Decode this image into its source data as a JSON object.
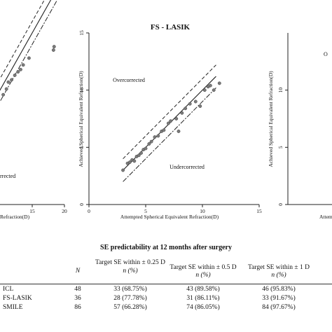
{
  "chart_data": [
    {
      "type": "scatter",
      "title": "",
      "xlabel": "Refraction(D)",
      "ylabel": "",
      "x_ticks": [
        "15",
        "20"
      ],
      "xlim": [
        0,
        20
      ],
      "ylim": [
        0,
        15
      ],
      "annotations": [
        "rrected"
      ],
      "series": [
        {
          "values": [
            [
              10.5,
              9.6
            ],
            [
              11.0,
              10.1
            ],
            [
              11.3,
              10.7
            ],
            [
              11.8,
              10.9
            ],
            [
              12.3,
              11.3
            ],
            [
              12.8,
              11.6
            ],
            [
              13.2,
              11.8
            ],
            [
              13.6,
              12.2
            ],
            [
              14.5,
              12.8
            ],
            [
              18.3,
              13.5
            ],
            [
              18.4,
              13.8
            ]
          ]
        }
      ]
    },
    {
      "type": "scatter",
      "title": "FS - LASIK",
      "xlabel": "Attempted Spherical Equivalent Refraction(D)",
      "ylabel": "Achieved Spherical Equivalent Refraction(D)",
      "x_ticks": [
        "0",
        "5",
        "10",
        "15"
      ],
      "y_ticks": [
        "0",
        "5",
        "10",
        "15"
      ],
      "xlim": [
        0,
        15
      ],
      "ylim": [
        0,
        15
      ],
      "annotations": [
        "Overcorrected",
        "Undercorrected"
      ],
      "series": [
        {
          "values": [
            [
              3.0,
              3.0
            ],
            [
              3.4,
              3.6
            ],
            [
              3.6,
              3.7
            ],
            [
              3.8,
              3.9
            ],
            [
              4.0,
              3.8
            ],
            [
              4.2,
              4.2
            ],
            [
              4.4,
              4.3
            ],
            [
              4.6,
              4.5
            ],
            [
              4.8,
              4.8
            ],
            [
              5.0,
              4.9
            ],
            [
              5.3,
              5.3
            ],
            [
              5.5,
              5.5
            ],
            [
              5.8,
              5.9
            ],
            [
              6.1,
              6.0
            ],
            [
              6.4,
              6.4
            ],
            [
              6.6,
              6.5
            ],
            [
              7.0,
              7.1
            ],
            [
              7.2,
              7.3
            ],
            [
              7.7,
              7.5
            ],
            [
              7.9,
              6.4
            ],
            [
              8.2,
              8.0
            ],
            [
              8.5,
              8.4
            ],
            [
              8.9,
              8.8
            ],
            [
              9.4,
              9.0
            ],
            [
              9.8,
              8.6
            ],
            [
              10.2,
              10.0
            ],
            [
              10.5,
              10.3
            ],
            [
              10.7,
              10.4
            ],
            [
              11.0,
              10.0
            ],
            [
              11.5,
              10.6
            ]
          ]
        }
      ]
    },
    {
      "type": "scatter",
      "title": "",
      "xlabel": "Attem",
      "ylabel": "Achieved Spherical Equivalent Refraction(D)",
      "y_ticks": [
        "0",
        "5",
        "10"
      ],
      "xlim": [
        0,
        15
      ],
      "ylim": [
        0,
        15
      ],
      "annotations": [
        "O"
      ],
      "series": []
    }
  ],
  "table": {
    "title": "SE predictability at 12 months after surgery",
    "headers": {
      "n": "N",
      "c1_line1": "Target SE within ± 0.25 D",
      "c2_line1": "Target SE within ± 0.5 D",
      "c3_line1": "Target SE within ± 1 D",
      "sub": "n (%)"
    },
    "rows": [
      {
        "name": "ICL",
        "n": "48",
        "c1": "33 (68.75%)",
        "c2": "43 (89.58%)",
        "c3": "46 (95.83%)"
      },
      {
        "name": "FS-LASIK",
        "n": "36",
        "c1": "28 (77.78%)",
        "c2": "31 (86.11%)",
        "c3": "33 (91.67%)"
      },
      {
        "name": "SMILE",
        "n": "86",
        "c1": "57 (66.28%)",
        "c2": "74 (86.05%)",
        "c3": "84 (97.67%)"
      }
    ]
  }
}
